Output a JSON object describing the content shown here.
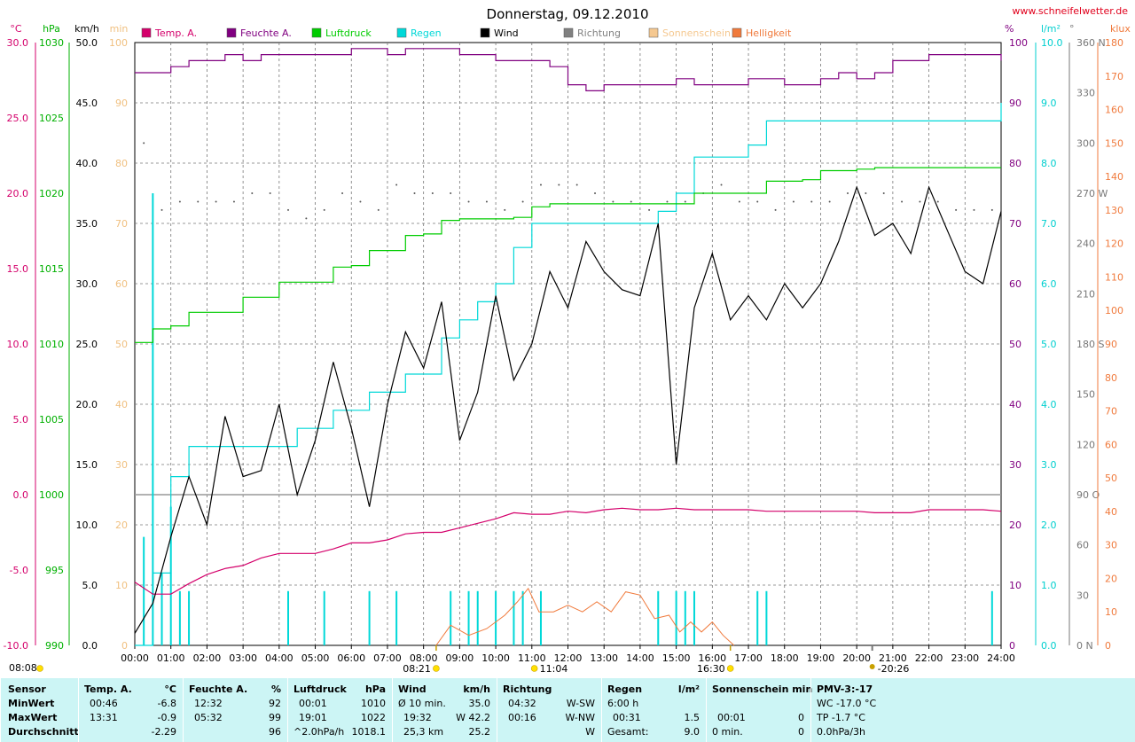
{
  "title": "Donnerstag, 09.12.2010",
  "site": "www.schneifelwetter.de",
  "legend": [
    {
      "label": "Temp. A.",
      "color": "#d4006b"
    },
    {
      "label": "Feuchte A.",
      "color": "#800080"
    },
    {
      "label": "Luftdruck",
      "color": "#00cc00"
    },
    {
      "label": "Regen",
      "color": "#00d8d8"
    },
    {
      "label": "Wind",
      "color": "#000000"
    },
    {
      "label": "Richtung",
      "color": "#808080"
    },
    {
      "label": "Sonnenschein",
      "color": "#f5c890"
    },
    {
      "label": "Helligkeit",
      "color": "#f07a3c"
    }
  ],
  "axes_units": {
    "temp": "°C",
    "pressure": "hPa",
    "wind": "km/h",
    "sunmin": "min",
    "humidity": "%",
    "rain": "l/m²",
    "dir": "°",
    "lux": "klux"
  },
  "axes_ticks": {
    "temp": [
      "30.0",
      "25.0",
      "20.0",
      "15.0",
      "10.0",
      "5.0",
      "0.0",
      "-5.0",
      "-10.0"
    ],
    "pressure": [
      "1030",
      "1025",
      "1020",
      "1015",
      "1010",
      "1005",
      "1000",
      "995",
      "990"
    ],
    "wind": [
      "50.0",
      "45.0",
      "40.0",
      "35.0",
      "30.0",
      "25.0",
      "20.0",
      "15.0",
      "10.0",
      "5.0",
      "0.0"
    ],
    "sunmin": [
      "100",
      "90",
      "80",
      "70",
      "60",
      "50",
      "40",
      "30",
      "20",
      "10",
      "0"
    ],
    "humidity": [
      "100",
      "90",
      "80",
      "70",
      "60",
      "50",
      "40",
      "30",
      "20",
      "10",
      "0"
    ],
    "rain": [
      "10.0",
      "9.0",
      "8.0",
      "7.0",
      "6.0",
      "5.0",
      "4.0",
      "3.0",
      "2.0",
      "1.0",
      "0.0"
    ],
    "dir": [
      "360 N",
      "330",
      "300",
      "270 W",
      "240",
      "210",
      "180 S",
      "150",
      "120",
      "90 O",
      "60",
      "30",
      "0 N"
    ],
    "lux": [
      "180",
      "170",
      "160",
      "150",
      "140",
      "130",
      "120",
      "110",
      "100",
      "90",
      "80",
      "70",
      "60",
      "50",
      "40",
      "30",
      "20",
      "10",
      "0"
    ]
  },
  "x_labels": [
    "00:00",
    "01:00",
    "02:00",
    "03:00",
    "04:00",
    "05:00",
    "06:00",
    "07:00",
    "08:00",
    "09:00",
    "10:00",
    "11:00",
    "12:00",
    "13:00",
    "14:00",
    "15:00",
    "16:00",
    "17:00",
    "18:00",
    "19:00",
    "20:00",
    "21:00",
    "22:00",
    "23:00",
    "24:00"
  ],
  "markers": {
    "m1": "08:08",
    "m2": "08:21",
    "m3": "11:04",
    "m4": "16:30",
    "m5": "-20:26"
  },
  "chart_data": {
    "type": "line",
    "title": "Donnerstag, 09.12.2010",
    "x_unit": "hours",
    "xlim": [
      0,
      24
    ],
    "series": [
      {
        "name": "Temp. A.",
        "unit": "°C",
        "ylim": [
          -10,
          30
        ],
        "x": [
          0,
          0.5,
          1,
          1.5,
          2,
          2.5,
          3,
          3.5,
          4,
          4.5,
          5,
          5.5,
          6,
          6.5,
          7,
          7.5,
          8,
          8.5,
          9,
          9.5,
          10,
          10.5,
          11,
          11.5,
          12,
          12.5,
          13,
          13.5,
          14,
          14.5,
          15,
          15.5,
          16,
          16.5,
          17,
          17.5,
          18,
          18.5,
          19,
          19.5,
          20,
          20.5,
          21,
          21.5,
          22,
          22.5,
          23,
          23.5,
          24
        ],
        "values": [
          -5.8,
          -6.6,
          -6.6,
          -5.9,
          -5.3,
          -4.9,
          -4.7,
          -4.2,
          -3.9,
          -3.9,
          -3.9,
          -3.6,
          -3.2,
          -3.2,
          -3.0,
          -2.6,
          -2.5,
          -2.5,
          -2.2,
          -1.9,
          -1.6,
          -1.2,
          -1.3,
          -1.3,
          -1.1,
          -1.2,
          -1.0,
          -0.9,
          -1.0,
          -1.0,
          -0.9,
          -1.0,
          -1.0,
          -1.0,
          -1.0,
          -1.1,
          -1.1,
          -1.1,
          -1.1,
          -1.1,
          -1.1,
          -1.2,
          -1.2,
          -1.2,
          -1.0,
          -1.0,
          -1.0,
          -1.0,
          -1.1
        ]
      },
      {
        "name": "Feuchte A.",
        "unit": "%",
        "ylim": [
          0,
          100
        ],
        "x": [
          0,
          0.5,
          1,
          1.5,
          2,
          2.5,
          3,
          3.5,
          4,
          4.5,
          5,
          5.5,
          6,
          6.5,
          7,
          7.5,
          8,
          8.5,
          9,
          9.5,
          10,
          10.5,
          11,
          11.5,
          12,
          12.5,
          13,
          13.5,
          14,
          14.5,
          15,
          15.5,
          16,
          16.5,
          17,
          17.5,
          18,
          18.5,
          19,
          19.5,
          20,
          20.5,
          21,
          21.5,
          22,
          22.5,
          23,
          23.5,
          24
        ],
        "values": [
          95,
          95,
          96,
          97,
          97,
          98,
          97,
          98,
          98,
          98,
          98,
          98,
          99,
          99,
          98,
          99,
          99,
          99,
          98,
          98,
          97,
          97,
          97,
          96,
          93,
          92,
          93,
          93,
          93,
          93,
          94,
          93,
          93,
          93,
          94,
          94,
          93,
          93,
          94,
          95,
          94,
          95,
          97,
          97,
          98,
          98,
          98,
          98,
          97
        ]
      },
      {
        "name": "Luftdruck",
        "unit": "hPa",
        "ylim": [
          990,
          1030
        ],
        "x": [
          0,
          0.5,
          1,
          1.5,
          2,
          2.5,
          3,
          3.5,
          4,
          4.5,
          5,
          5.5,
          6,
          6.5,
          7,
          7.5,
          8,
          8.5,
          9,
          9.5,
          10,
          10.5,
          11,
          11.5,
          12,
          12.5,
          13,
          13.5,
          14,
          14.5,
          15,
          15.5,
          16,
          16.5,
          17,
          17.5,
          18,
          18.5,
          19,
          19.5,
          20,
          20.5,
          21,
          21.5,
          22,
          22.5,
          23,
          23.5,
          24
        ],
        "values": [
          1010.1,
          1011.0,
          1011.2,
          1012.1,
          1012.1,
          1012.1,
          1013.1,
          1013.1,
          1014.1,
          1014.1,
          1014.1,
          1015.1,
          1015.2,
          1016.2,
          1016.2,
          1017.2,
          1017.3,
          1018.2,
          1018.3,
          1018.3,
          1018.3,
          1018.4,
          1019.1,
          1019.3,
          1019.3,
          1019.3,
          1019.3,
          1019.3,
          1019.3,
          1019.3,
          1019.3,
          1020.0,
          1020.0,
          1020.0,
          1020.0,
          1020.8,
          1020.8,
          1020.9,
          1021.5,
          1021.5,
          1021.6,
          1021.7,
          1021.7,
          1021.7,
          1021.7,
          1021.7,
          1021.7,
          1021.7,
          1021.7
        ]
      },
      {
        "name": "Regen",
        "unit": "l/m²",
        "ylim": [
          0,
          10
        ],
        "x": [
          0,
          0.5,
          1,
          1.5,
          2,
          2.5,
          3,
          3.5,
          4,
          4.5,
          5,
          5.5,
          6,
          6.5,
          7,
          7.5,
          8,
          8.5,
          9,
          9.5,
          10,
          10.5,
          11,
          11.5,
          12,
          12.5,
          13,
          13.5,
          14,
          14.5,
          15,
          15.5,
          16,
          16.5,
          17,
          17.5,
          18,
          18.5,
          19,
          19.5,
          20,
          20.5,
          21,
          21.5,
          22,
          22.5,
          23,
          23.5,
          24
        ],
        "values": [
          0,
          1.2,
          2.8,
          3.3,
          3.3,
          3.3,
          3.3,
          3.3,
          3.3,
          3.6,
          3.6,
          3.9,
          3.9,
          4.2,
          4.2,
          4.5,
          4.5,
          5.1,
          5.4,
          5.7,
          6.0,
          6.6,
          7.0,
          7.0,
          7.0,
          7.0,
          7.0,
          7.0,
          7.0,
          7.2,
          7.5,
          8.1,
          8.1,
          8.1,
          8.3,
          8.7,
          8.7,
          8.7,
          8.7,
          8.7,
          8.7,
          8.7,
          8.7,
          8.7,
          8.7,
          8.7,
          8.7,
          8.7,
          9.0
        ]
      },
      {
        "name": "Wind",
        "unit": "km/h",
        "ylim": [
          0,
          50
        ],
        "x": [
          0,
          0.5,
          1,
          1.5,
          2,
          2.5,
          3,
          3.5,
          4,
          4.5,
          5,
          5.5,
          6,
          6.5,
          7,
          7.5,
          8,
          8.5,
          9,
          9.5,
          10,
          10.5,
          11,
          11.5,
          12,
          12.5,
          13,
          13.5,
          14,
          14.5,
          15,
          15.5,
          16,
          16.5,
          17,
          17.5,
          18,
          18.5,
          19,
          19.5,
          20,
          20.5,
          21,
          21.5,
          22,
          22.5,
          23,
          23.5,
          24
        ],
        "values": [
          1.0,
          3.5,
          9.0,
          14.0,
          10.0,
          19.0,
          14.0,
          14.5,
          20.0,
          12.5,
          17.0,
          23.5,
          18.0,
          11.5,
          20.0,
          26.0,
          23.0,
          28.5,
          17.0,
          21.0,
          29.0,
          22.0,
          25.0,
          31.0,
          28.0,
          33.5,
          31.0,
          29.5,
          29.0,
          35.0,
          15.0,
          28.0,
          32.5,
          27.0,
          29.0,
          27.0,
          30.0,
          28.0,
          30.0,
          33.5,
          38.0,
          34.0,
          35.0,
          32.5,
          38.0,
          34.5,
          31.0,
          30.0,
          36.0
        ]
      },
      {
        "name": "Richtung",
        "unit": "°",
        "ylim": [
          0,
          360
        ],
        "x": [
          0.25,
          0.75,
          1.25,
          1.75,
          2.25,
          2.75,
          3.25,
          3.75,
          4.25,
          4.75,
          5.25,
          5.75,
          6.25,
          6.75,
          7.25,
          7.75,
          8.25,
          8.75,
          9.25,
          9.75,
          10.25,
          10.75,
          11.25,
          11.75,
          12.25,
          12.75,
          13.25,
          13.75,
          14.25,
          14.75,
          15.25,
          15.75,
          16.25,
          16.75,
          17.25,
          17.75,
          18.25,
          18.75,
          19.25,
          19.75,
          20.25,
          20.75,
          21.25,
          21.75,
          22.25,
          22.75,
          23.25,
          23.75
        ],
        "values": [
          300,
          260,
          265,
          265,
          265,
          265,
          270,
          270,
          260,
          255,
          260,
          270,
          265,
          260,
          275,
          270,
          270,
          270,
          265,
          265,
          260,
          265,
          275,
          275,
          275,
          270,
          265,
          265,
          260,
          265,
          265,
          270,
          275,
          265,
          265,
          260,
          265,
          265,
          265,
          270,
          270,
          270,
          265,
          265,
          265,
          260,
          260,
          260
        ]
      },
      {
        "name": "Helligkeit",
        "unit": "klux",
        "ylim": [
          0,
          180
        ],
        "x": [
          8.35,
          8.75,
          9.25,
          9.75,
          10.25,
          10.6,
          10.9,
          11.2,
          11.6,
          12.0,
          12.4,
          12.8,
          13.2,
          13.6,
          14.0,
          14.4,
          14.8,
          15.1,
          15.4,
          15.7,
          16.0,
          16.3,
          16.6
        ],
        "values": [
          0,
          6,
          3,
          5,
          9,
          13,
          17,
          10,
          10,
          12,
          10,
          13,
          10,
          16,
          15,
          8,
          9,
          4,
          7,
          4,
          7,
          3,
          0
        ]
      },
      {
        "name": "Sonnenschein",
        "unit": "min",
        "ylim": [
          0,
          100
        ],
        "x": [
          0,
          24
        ],
        "values": [
          0,
          0
        ]
      }
    ],
    "rain_events": [
      {
        "t": 0.25,
        "v": 1.8
      },
      {
        "t": 0.5,
        "v": 7.5
      },
      {
        "t": 0.75,
        "v": 1.2
      },
      {
        "t": 1.0,
        "v": 2.3
      },
      {
        "t": 1.25,
        "v": 0.9
      },
      {
        "t": 1.5,
        "v": 0.9
      },
      {
        "t": 4.25,
        "v": 0.9
      },
      {
        "t": 5.25,
        "v": 0.9
      },
      {
        "t": 6.5,
        "v": 0.9
      },
      {
        "t": 7.25,
        "v": 0.9
      },
      {
        "t": 8.75,
        "v": 0.9
      },
      {
        "t": 9.25,
        "v": 0.9
      },
      {
        "t": 9.5,
        "v": 0.9
      },
      {
        "t": 10.0,
        "v": 0.9
      },
      {
        "t": 10.5,
        "v": 0.9
      },
      {
        "t": 10.75,
        "v": 0.9
      },
      {
        "t": 11.25,
        "v": 0.9
      },
      {
        "t": 14.5,
        "v": 0.9
      },
      {
        "t": 15.0,
        "v": 0.9
      },
      {
        "t": 15.25,
        "v": 0.9
      },
      {
        "t": 15.5,
        "v": 0.9
      },
      {
        "t": 17.25,
        "v": 0.9
      },
      {
        "t": 17.5,
        "v": 0.9
      },
      {
        "t": 23.75,
        "v": 0.9
      }
    ]
  },
  "stats": {
    "sensor": {
      "h": "Sensor",
      "rows": [
        "MinWert",
        "MaxWert",
        "Durchschnitt"
      ]
    },
    "temp": {
      "h": "Temp. A.",
      "u": "°C",
      "t": [
        "00:46",
        "13:31",
        ""
      ],
      "v": [
        "-6.8",
        "-0.9",
        "-2.29"
      ]
    },
    "hum": {
      "h": "Feuchte A.",
      "u": "%",
      "t": [
        "12:32",
        "05:32",
        ""
      ],
      "v": [
        "92",
        "99",
        "96"
      ]
    },
    "pres": {
      "h": "Luftdruck",
      "u": "hPa",
      "t": [
        "00:01",
        "19:01",
        "^2.0hPa/h"
      ],
      "v": [
        "1010",
        "1022",
        "1018.1"
      ]
    },
    "wind": {
      "h": "Wind",
      "u": "km/h",
      "t": [
        "Ø 10 min.",
        "19:32",
        "25,3 km"
      ],
      "v": [
        "35.0",
        "W 42.2",
        "25.2"
      ]
    },
    "dir": {
      "h": "Richtung",
      "t": [
        "04:32",
        "00:16",
        ""
      ],
      "v": [
        "W-SW",
        "W-NW",
        "W"
      ]
    },
    "rain": {
      "h": "Regen",
      "u": "l/m²",
      "t": [
        "6:00 h",
        "00:31",
        "Gesamt:"
      ],
      "v": [
        "",
        "1.5",
        "9.0"
      ]
    },
    "sun": {
      "h": "Sonnenschein min",
      "t": [
        "",
        "00:01",
        "0 min."
      ],
      "v": [
        "",
        "0",
        "0"
      ]
    },
    "pmv": {
      "h": "PMV-3:-17",
      "t": [
        "WC -17.0 °C",
        "TP -1.7 °C",
        "0.0hPa/3h"
      ]
    }
  }
}
